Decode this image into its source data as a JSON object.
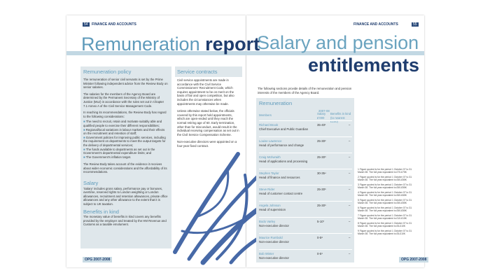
{
  "left_page": {
    "page_number": "54",
    "section": "FINANCE AND ACCOUNTS",
    "title_light": "Remuneration",
    "title_bold": "report",
    "policy": {
      "heading": "Remuneration policy",
      "paragraphs": [
        "The remuneration of senior civil servants is set by the Prime Minister following independent advice from the Review Body on senior salaries.",
        "The salaries for the members of the Agency Board are determined by the Permanent Secretary of the Ministry of Justice (MoJ) in accordance with the rules set out in Chapter 7.1 Annex A of the Civil Service Management Code.",
        "In reaching its recommendations, the Review Body has regard to the following considerations:"
      ],
      "bullets": [
        "The need to recruit, retain and motivate suitably able and qualified people to exercise their different responsibilities;",
        "Regional/local variations in labour markets and their effects on the recruitment and retention of staff;",
        "Government policies for improving public services, including the requirement on departments to meet the output targets for the delivery of departmental services;",
        "The funds available to departments as set out in the Government's departmental expenditure limits; and",
        "The Government's inflation target."
      ],
      "closing": "The Review Body takes account of the evidence it receives about wider economic considerations and the affordability of its recommendations."
    },
    "salary": {
      "heading": "Salary",
      "text": "'Salary' includes gross salary, performance pay or bonuses, overtime, reserved rights to London weighting or London allowances, recruitment and retention allowances, private office allowances and any other allowance to the extent that it is subject to UK taxation."
    },
    "benefits": {
      "heading": "Benefits in kind",
      "text": "The monetary value of benefits in kind covers any benefits provided by the employer and treated by the HM Revenue and Customs as a taxable emolument."
    },
    "contracts": {
      "heading": "Service contracts",
      "paragraphs": [
        "Civil service appointments are made in accordance with the Civil Service Commissioners' Recruitment Code, which requires appointment to be on merit on the basis of fair and open competition, but also includes the circumstances when appointments may otherwise be made.",
        "Unless otherwise stated below, the officials covered by this report hold appointments, which are open-ended until they reach the normal retiring age of 60. Early termination, other than for misconduct, would result in the individual receiving compensation as set out in the Civil Service Compensation Scheme.",
        "Non-executive directors were appointed on a four-year fixed contract."
      ]
    },
    "footer": "OPG 2007-2008"
  },
  "right_page": {
    "page_number": "55",
    "section": "FINANCE AND ACCOUNTS",
    "title_line1": "Salary and pension",
    "title_line2": "entitlements",
    "intro": "The following sections provide details of the remuneration and pension interests of the members of the Agency Board.",
    "heading": "Remuneration",
    "table": {
      "year": "2007-08",
      "columns": [
        "Members",
        "Salary £'000",
        "Benefits in kind (to nearest £100)"
      ],
      "rows": [
        [
          "Richard Brook",
          "Chief Executive and Public Guardian",
          "35-40¹",
          "–"
        ],
        [
          "Louise Lawrence",
          "Head of performance and change",
          "25-30²",
          "–"
        ],
        [
          "Craig McIlwraith",
          "Head of applications and processing",
          "25-30³",
          "–"
        ],
        [
          "Stephen Taylor",
          "Head of finance and resources",
          "30-35⁴",
          "–"
        ],
        [
          "Steve Rider",
          "Head of customer contact centre",
          "25-30⁵",
          "–"
        ],
        [
          "Angela Johnson",
          "Head of supervision",
          "25-30⁶",
          "–"
        ],
        [
          "Bodo Varley",
          "Non-executive director",
          "5-10⁷",
          "–"
        ],
        [
          "Maurice Rumbold",
          "Non-executive director",
          "0-5⁸",
          "–"
        ],
        [
          "Bob Winter",
          "Non-executive director",
          "0-5⁹",
          "–"
        ]
      ]
    },
    "footnotes": [
      "1 Figure quoted is for the period 1 October 07 to 31 March 08. The full year equivalent is £70-£75K",
      "2 Figure quoted is for the period 1 October 07 to 31 March 08. The full year equivalent is £50-£55K",
      "3 Figure quoted is for the period 1 October 07 to 31 March 08. The full year equivalent is £50-£55K",
      "4 Figure quoted is for the period 1 October 07 to 31 March 08. The full year equivalent is £60-£65K",
      "5 Figure quoted is for the period 1 October 07 to 31 March 08. The full year equivalent is £50-£55K",
      "6 Figure quoted is for the period 1 October 07 to 31 March 08. The full year equivalent is £50-£55K",
      "7 Figure quoted is for the period 1 October 07 to 31 March 08. The full year equivalent is £10-£15K",
      "8 Figure quoted is for the period 1 October 07 to 31 March 08. The full year equivalent is £5-£10K",
      "9 Figure quoted is for the period 1 October 07 to 31 March 08. The full year equivalent is £5-£10K"
    ],
    "footer": "OPG 2007-2008"
  }
}
